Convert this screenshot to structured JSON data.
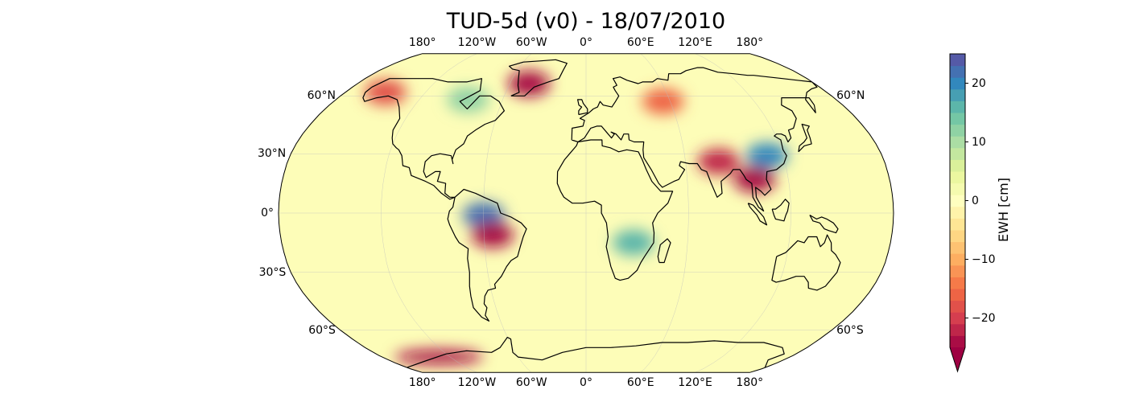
{
  "title": "TUD-5d (v0) - 18/07/2010",
  "map": {
    "projection": "robinson",
    "lon_labels": [
      "180°",
      "120°W",
      "60°W",
      "0°",
      "60°E",
      "120°E",
      "180°"
    ],
    "lat_labels_left": [
      "60°N",
      "30°N",
      "0°",
      "30°S",
      "60°S"
    ],
    "lat_labels_right": [
      "60°N",
      "60°S"
    ],
    "colormap": "Spectral",
    "ocean_color": "#fdfdb8",
    "anomalies": [
      {
        "region": "greenland-south",
        "lon": -45,
        "lat": 67,
        "value": -24
      },
      {
        "region": "alaska",
        "lon": -150,
        "lat": 62,
        "value": -18
      },
      {
        "region": "hudson-bay",
        "lon": -85,
        "lat": 58,
        "value": 12
      },
      {
        "region": "amazon-north",
        "lon": -60,
        "lat": -1,
        "value": 22
      },
      {
        "region": "amazon-south",
        "lon": -55,
        "lat": -11,
        "value": -24
      },
      {
        "region": "india-north",
        "lon": 80,
        "lat": 26,
        "value": -22
      },
      {
        "region": "indochina",
        "lon": 100,
        "lat": 17,
        "value": -24
      },
      {
        "region": "yangtze",
        "lon": 110,
        "lat": 29,
        "value": 20
      },
      {
        "region": "ural",
        "lon": 55,
        "lat": 57,
        "value": -16
      },
      {
        "region": "zambezi",
        "lon": 28,
        "lat": -15,
        "value": 16
      },
      {
        "region": "antarctica-west",
        "lon": -130,
        "lat": -76,
        "value": -24
      }
    ]
  },
  "colorbar": {
    "label": "EWH [cm]",
    "min": -25,
    "max": 25,
    "extend": "min",
    "ticks": [
      20,
      10,
      0,
      -10,
      -20
    ],
    "tick_labels": [
      "20",
      "10",
      "0",
      "−10",
      "−20"
    ]
  }
}
